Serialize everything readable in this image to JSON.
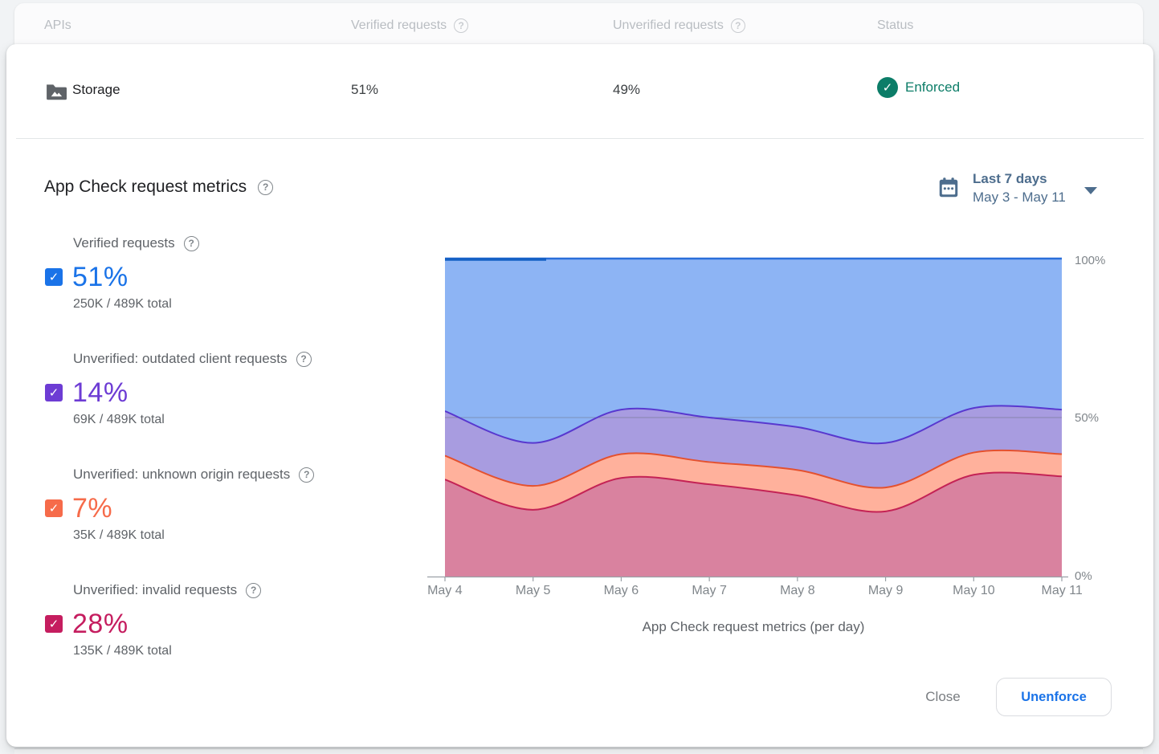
{
  "table": {
    "headers": {
      "apis": "APIs",
      "verified": "Verified requests",
      "unverified": "Unverified requests",
      "status": "Status"
    },
    "row": {
      "api_name": "Storage",
      "verified_pct": "51%",
      "unverified_pct": "49%",
      "status": "Enforced",
      "status_color": "#0c7d68"
    }
  },
  "section": {
    "title": "App Check request metrics",
    "date_range": {
      "label": "Last 7 days",
      "dates": "May 3 - May 11"
    }
  },
  "legend": {
    "items": [
      {
        "label": "Verified requests",
        "pct": "51%",
        "total": "250K / 489K total",
        "color": "#1a73e8",
        "checked": true
      },
      {
        "label": "Unverified: outdated client requests",
        "pct": "14%",
        "total": "69K / 489K total",
        "color": "#6d3cd4",
        "checked": true
      },
      {
        "label": "Unverified: unknown origin requests",
        "pct": "7%",
        "total": "35K / 489K total",
        "color": "#f a66b4a",
        "checked": true
      },
      {
        "label": "Unverified: invalid requests",
        "pct": "28%",
        "total": "135K / 489K total",
        "color": "#c51d5f",
        "checked": true
      }
    ]
  },
  "chart_data": {
    "type": "area",
    "stacked": true,
    "title": "App Check request metrics (per day)",
    "x": [
      "May 4",
      "May 5",
      "May 6",
      "May 7",
      "May 8",
      "May 9",
      "May 10",
      "May 11"
    ],
    "y_ticks": [
      "100%",
      "50%",
      "0%"
    ],
    "ylim": [
      0,
      100
    ],
    "unit": "%",
    "grid_lines": [
      50
    ],
    "series": [
      {
        "name": "Unverified: invalid requests",
        "values": [
          30.5,
          21,
          31,
          29,
          25.5,
          20.5,
          32,
          31.5
        ],
        "fill": "#d9829f",
        "stroke": "#c42355"
      },
      {
        "name": "Unverified: unknown origin requests",
        "values": [
          7.5,
          7.5,
          7.5,
          7,
          8,
          7.5,
          7,
          7
        ],
        "fill": "#ffb19c",
        "stroke": "#e4512f"
      },
      {
        "name": "Unverified: outdated client requests",
        "values": [
          14,
          13.5,
          14,
          14,
          13.5,
          14,
          14,
          14
        ],
        "fill": "#a89ce0",
        "stroke": "#5838cf"
      },
      {
        "name": "Verified requests",
        "values": [
          48,
          58,
          47.5,
          50,
          53,
          58,
          47,
          47.5
        ],
        "fill": "#8db4f4",
        "stroke": "#2a6fd9"
      }
    ]
  },
  "footer": {
    "close_label": "Close",
    "unenforce_label": "Unenforce"
  },
  "icons": {
    "help": "?",
    "check": "✓"
  }
}
